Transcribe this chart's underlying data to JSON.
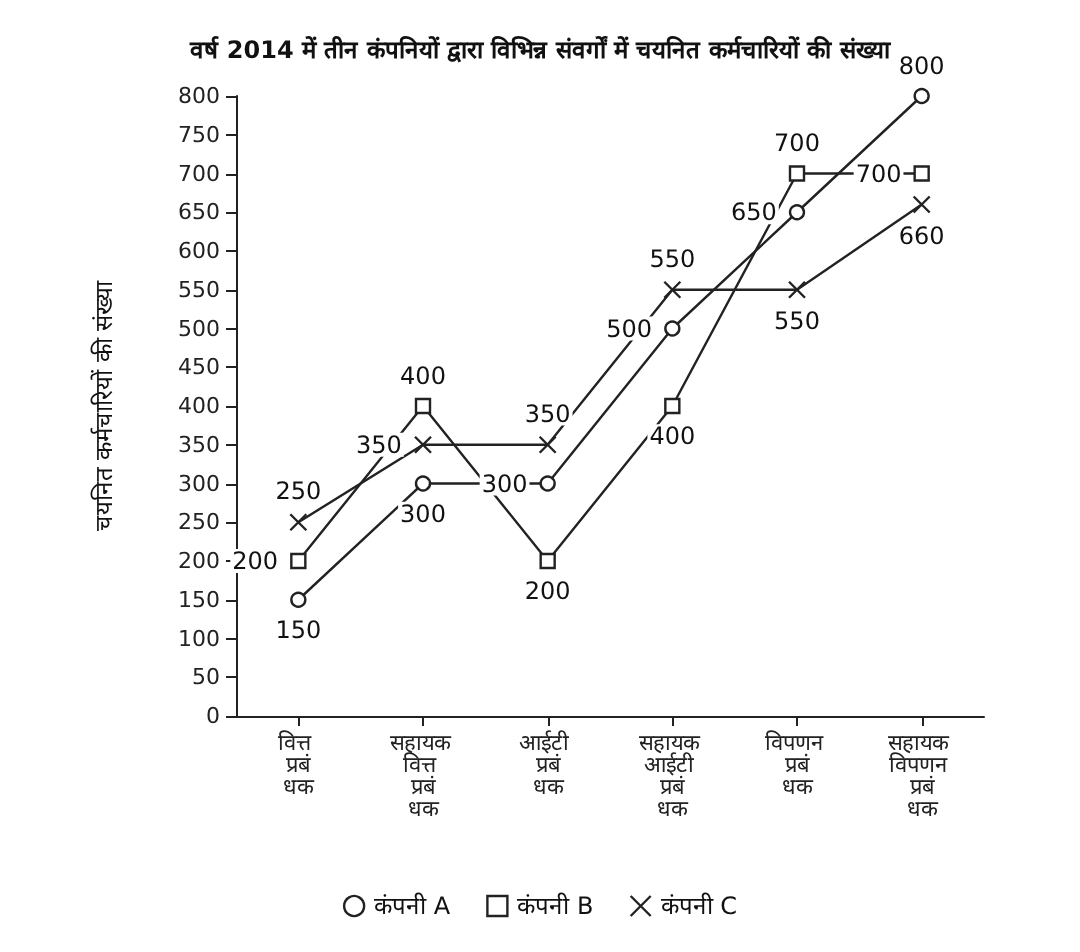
{
  "chart_data": {
    "type": "line",
    "title": "वर्ष 2014 में तीन कंपनियों द्वारा विभिन्न संवर्गों में चयनित कर्मचारियों की संख्या",
    "ylabel": "चयनित कर्मचारियों की संख्या",
    "categories": [
      "वित्त प्रबंधक",
      "सहायक वित्त प्रबंधक",
      "आईटी प्रबंधक",
      "सहायक आईटी प्रबंधक",
      "विपणन प्रबंधक",
      "सहायक विपणन प्रबंधक"
    ],
    "series": [
      {
        "name": "कंपनी A",
        "color": "#222222",
        "marker": "circle",
        "values": [
          150,
          300,
          300,
          500,
          650,
          800
        ]
      },
      {
        "name": "कंपनी B",
        "color": "#222222",
        "marker": "square",
        "values": [
          200,
          400,
          200,
          400,
          700,
          700
        ]
      },
      {
        "name": "कंपनी C",
        "color": "#222222",
        "marker": "cross",
        "values": [
          250,
          350,
          350,
          550,
          550,
          660
        ]
      }
    ],
    "ylim": [
      0,
      800
    ],
    "yticks": [
      0,
      50,
      100,
      150,
      200,
      250,
      300,
      350,
      400,
      450,
      500,
      550,
      600,
      650,
      700,
      750,
      800
    ],
    "data_labels": true,
    "grid": false,
    "legend": "bottom",
    "line_style": "solid"
  }
}
